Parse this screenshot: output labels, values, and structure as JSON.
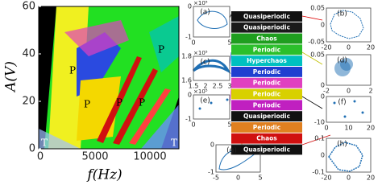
{
  "main_plot": {
    "y_label": "A(V)",
    "x_label": "f(Hz)",
    "y_ticks": [
      "0",
      "20",
      "40",
      "60"
    ],
    "x_ticks": [
      "0",
      "5000",
      "10000"
    ],
    "region_labels": [
      "P",
      "P",
      "P",
      "P",
      "P",
      "T",
      "T"
    ]
  },
  "legend": [
    {
      "label": "Quasiperiodic",
      "color": "#111111"
    },
    {
      "label": "Quasiperiodic",
      "color": "#1a1a1a"
    },
    {
      "label": "Chaos",
      "color": "#1f9e1f"
    },
    {
      "label": "Periodic",
      "color": "#2bbf2b"
    },
    {
      "label": "Hyperchaos",
      "color": "#00c0c0"
    },
    {
      "label": "Periodic",
      "color": "#1f3fd0"
    },
    {
      "label": "Periodic",
      "color": "#e040c0"
    },
    {
      "label": "Periodic",
      "color": "#d8d000"
    },
    {
      "label": "Periodic",
      "color": "#c020c0"
    },
    {
      "label": "Quasiperiodic",
      "color": "#111111"
    },
    {
      "label": "Periodic",
      "color": "#e08020"
    },
    {
      "label": "Chaos",
      "color": "#d01010"
    },
    {
      "label": "Quasiperiodic",
      "color": "#111111"
    }
  ],
  "panels": [
    {
      "label": "(a)",
      "exponent": "×10⁵",
      "x_ticks": [
        "0",
        "5"
      ],
      "y_ticks": [
        "0",
        "-1"
      ]
    },
    {
      "label": "(b)",
      "x_ticks": [
        "-20",
        "0",
        "20"
      ],
      "y_ticks": [
        "0.05",
        "0",
        "-0.05"
      ]
    },
    {
      "label": "(c)",
      "exponent": "×10⁵",
      "x_ticks": [
        "1.5",
        "2",
        "2.5",
        "3"
      ],
      "y_ticks": [
        "1.8",
        "1.6"
      ]
    },
    {
      "label": "(d)",
      "x_ticks": [
        "-2",
        "0",
        "2"
      ],
      "y_ticks": [
        "0.05",
        "0"
      ]
    },
    {
      "label": "(e)",
      "exponent": "×10⁵",
      "x_ticks": [
        "0",
        "5"
      ],
      "y_ticks": [
        "0",
        "-1"
      ]
    },
    {
      "label": "(f)",
      "x_ticks": [
        "0",
        "10",
        "20"
      ],
      "y_ticks": [
        "0",
        "-10"
      ]
    },
    {
      "label": "(g)",
      "x_ticks": [
        "-5",
        "0",
        "5"
      ],
      "y_ticks": [
        "0",
        "-1"
      ]
    },
    {
      "label": "(h)",
      "x_ticks": [
        "-20",
        "0",
        "20"
      ],
      "y_ticks": [
        "0.1",
        "0",
        "-0.1"
      ]
    }
  ]
}
